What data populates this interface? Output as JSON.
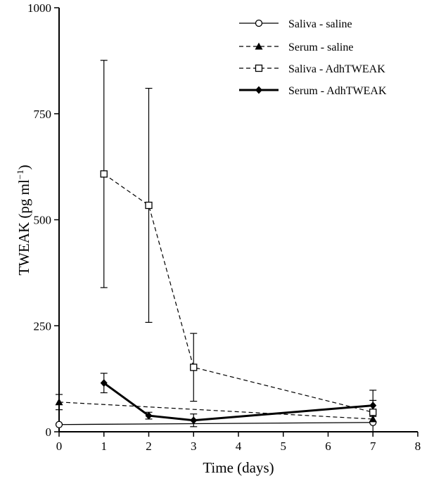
{
  "chart_data": {
    "type": "line",
    "xlabel": "Time (days)",
    "ylabel": "TWEAK (pg ml",
    "ylabel_superscript": "−1",
    "ylabel_suffix": ")",
    "xlim": [
      0,
      8
    ],
    "ylim": [
      0,
      1000
    ],
    "x_ticks": [
      0,
      1,
      2,
      3,
      4,
      5,
      6,
      7,
      8
    ],
    "y_ticks": [
      0,
      250,
      500,
      750,
      1000
    ],
    "grid": false,
    "legend_position": "top-right",
    "series": [
      {
        "name": "Saliva - saline",
        "marker": "open-circle",
        "line": "solid",
        "points": [
          {
            "x": 0,
            "y": 17
          },
          {
            "x": 7,
            "y": 22
          }
        ]
      },
      {
        "name": "Serum - saline",
        "marker": "filled-triangle",
        "line": "dashed",
        "points": [
          {
            "x": 0,
            "y": 70,
            "err_low": 52,
            "err_high": 88
          },
          {
            "x": 7,
            "y": 30,
            "err_low": 24,
            "err_high": 36
          }
        ]
      },
      {
        "name": "Saliva - AdhTWEAK",
        "marker": "open-square",
        "line": "dashed",
        "points": [
          {
            "x": 1,
            "y": 608,
            "err_low": 340,
            "err_high": 876
          },
          {
            "x": 2,
            "y": 534,
            "err_low": 258,
            "err_high": 810
          },
          {
            "x": 3,
            "y": 152,
            "err_low": 72,
            "err_high": 232
          },
          {
            "x": 7,
            "y": 46,
            "err_low": 0,
            "err_high": 98
          }
        ]
      },
      {
        "name": "Serum - AdhTWEAK",
        "marker": "filled-diamond",
        "line": "thick-solid",
        "points": [
          {
            "x": 1,
            "y": 115,
            "err_low": 92,
            "err_high": 138
          },
          {
            "x": 2,
            "y": 38,
            "err_low": 30,
            "err_high": 46
          },
          {
            "x": 3,
            "y": 27,
            "err_low": 12,
            "err_high": 42
          },
          {
            "x": 7,
            "y": 62,
            "err_low": 50,
            "err_high": 74
          }
        ]
      }
    ]
  }
}
